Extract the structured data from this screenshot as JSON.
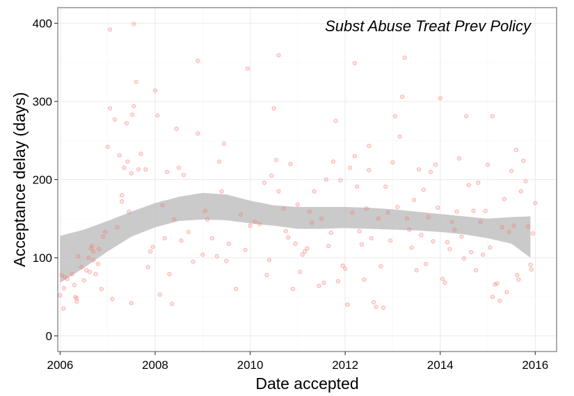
{
  "chart_data": {
    "type": "scatter",
    "title": "Subst Abuse Treat Prev Policy",
    "xlabel": "Date accepted",
    "ylabel": "Acceptance delay (days)",
    "xlim": [
      2005.95,
      2016.45
    ],
    "ylim": [
      -20,
      420
    ],
    "x_ticks": [
      2006,
      2008,
      2010,
      2012,
      2014,
      2016
    ],
    "x_tick_labels": [
      "2006",
      "2008",
      "2010",
      "2012",
      "2014",
      "2016"
    ],
    "y_ticks": [
      0,
      100,
      200,
      300,
      400
    ],
    "y_tick_labels": [
      "0",
      "100",
      "200",
      "300",
      "400"
    ],
    "grid": true,
    "legend": "none",
    "colors": {
      "point": "#f8766d",
      "ribbon": "#bdbdbd",
      "panel_border": "#7f7f7f",
      "grid": "#ebebeb"
    },
    "smooth_band": {
      "x": [
        2006.0,
        2006.5,
        2007.0,
        2007.5,
        2008.0,
        2008.5,
        2009.0,
        2009.5,
        2010.0,
        2010.5,
        2011.0,
        2011.5,
        2012.0,
        2012.5,
        2013.0,
        2013.5,
        2014.0,
        2014.5,
        2015.0,
        2015.5,
        2015.9
      ],
      "upper": [
        128,
        136,
        147,
        159,
        170,
        178,
        183,
        181,
        173,
        167,
        165,
        165,
        165,
        164,
        162,
        159,
        156,
        153,
        150,
        152,
        153
      ],
      "lower": [
        68,
        87,
        108,
        127,
        139,
        147,
        149,
        148,
        144,
        141,
        137,
        137,
        138,
        137,
        136,
        135,
        133,
        130,
        125,
        118,
        100
      ]
    },
    "series": [
      {
        "points": [
          [
            2006.0,
            52
          ],
          [
            2006.03,
            78
          ],
          [
            2006.07,
            35
          ],
          [
            2006.08,
            61
          ],
          [
            2006.1,
            75
          ],
          [
            2006.15,
            73
          ],
          [
            2006.25,
            79
          ],
          [
            2006.3,
            65
          ],
          [
            2006.32,
            50
          ],
          [
            2006.35,
            44
          ],
          [
            2006.35,
            48
          ],
          [
            2006.38,
            102
          ],
          [
            2006.45,
            88
          ],
          [
            2006.5,
            71
          ],
          [
            2006.55,
            84
          ],
          [
            2006.6,
            100
          ],
          [
            2006.62,
            82
          ],
          [
            2006.65,
            112
          ],
          [
            2006.67,
            115
          ],
          [
            2006.7,
            108
          ],
          [
            2006.75,
            79
          ],
          [
            2006.7,
            97
          ],
          [
            2006.8,
            92
          ],
          [
            2006.82,
            111
          ],
          [
            2006.9,
            127
          ],
          [
            2006.95,
            133
          ],
          [
            2006.87,
            60
          ],
          [
            2007.0,
            242
          ],
          [
            2007.05,
            392
          ],
          [
            2007.05,
            291
          ],
          [
            2007.1,
            47
          ],
          [
            2007.15,
            277
          ],
          [
            2007.2,
            139
          ],
          [
            2007.25,
            231
          ],
          [
            2007.3,
            180
          ],
          [
            2007.3,
            172
          ],
          [
            2007.35,
            215
          ],
          [
            2007.4,
            272
          ],
          [
            2007.42,
            223
          ],
          [
            2007.45,
            159
          ],
          [
            2007.5,
            208
          ],
          [
            2007.52,
            283
          ],
          [
            2007.55,
            399
          ],
          [
            2007.55,
            294
          ],
          [
            2007.6,
            325
          ],
          [
            2007.65,
            213
          ],
          [
            2007.7,
            233
          ],
          [
            2007.5,
            42
          ],
          [
            2007.8,
            213
          ],
          [
            2007.85,
            88
          ],
          [
            2007.9,
            108
          ],
          [
            2007.95,
            114
          ],
          [
            2008.0,
            314
          ],
          [
            2008.05,
            282
          ],
          [
            2008.1,
            53
          ],
          [
            2008.15,
            167
          ],
          [
            2008.2,
            125
          ],
          [
            2008.25,
            210
          ],
          [
            2008.3,
            79
          ],
          [
            2008.35,
            41
          ],
          [
            2008.4,
            149
          ],
          [
            2008.45,
            265
          ],
          [
            2008.5,
            215
          ],
          [
            2008.55,
            122
          ],
          [
            2008.6,
            206
          ],
          [
            2008.7,
            133
          ],
          [
            2008.8,
            95
          ],
          [
            2008.9,
            352
          ],
          [
            2008.9,
            259
          ],
          [
            2009.0,
            104
          ],
          [
            2009.05,
            160
          ],
          [
            2009.1,
            149
          ],
          [
            2009.2,
            125
          ],
          [
            2009.3,
            102
          ],
          [
            2009.35,
            223
          ],
          [
            2009.4,
            185
          ],
          [
            2009.45,
            246
          ],
          [
            2009.5,
            96
          ],
          [
            2009.55,
            118
          ],
          [
            2009.7,
            60
          ],
          [
            2009.8,
            155
          ],
          [
            2009.9,
            110
          ],
          [
            2009.95,
            342
          ],
          [
            2010.0,
            141
          ],
          [
            2010.1,
            146
          ],
          [
            2010.2,
            143
          ],
          [
            2010.3,
            196
          ],
          [
            2010.35,
            78
          ],
          [
            2010.4,
            97
          ],
          [
            2010.45,
            205
          ],
          [
            2010.5,
            291
          ],
          [
            2010.55,
            225
          ],
          [
            2010.6,
            185
          ],
          [
            2010.6,
            359
          ],
          [
            2010.7,
            163
          ],
          [
            2010.75,
            134
          ],
          [
            2010.8,
            126
          ],
          [
            2010.85,
            220
          ],
          [
            2010.9,
            60
          ],
          [
            2010.95,
            118
          ],
          [
            2011.0,
            168
          ],
          [
            2011.05,
            82
          ],
          [
            2011.1,
            104
          ],
          [
            2011.15,
            108
          ],
          [
            2011.2,
            112
          ],
          [
            2011.25,
            159
          ],
          [
            2011.3,
            145
          ],
          [
            2011.35,
            185
          ],
          [
            2011.45,
            64
          ],
          [
            2011.5,
            150
          ],
          [
            2011.55,
            68
          ],
          [
            2011.6,
            200
          ],
          [
            2011.65,
            115
          ],
          [
            2011.7,
            132
          ],
          [
            2011.75,
            223
          ],
          [
            2011.8,
            275
          ],
          [
            2011.85,
            70
          ],
          [
            2011.9,
            199
          ],
          [
            2011.95,
            90
          ],
          [
            2012.0,
            86
          ],
          [
            2012.05,
            40
          ],
          [
            2012.1,
            215
          ],
          [
            2012.15,
            158
          ],
          [
            2012.2,
            349
          ],
          [
            2012.2,
            230
          ],
          [
            2012.25,
            191
          ],
          [
            2012.3,
            134
          ],
          [
            2012.35,
            117
          ],
          [
            2012.4,
            72
          ],
          [
            2012.45,
            163
          ],
          [
            2012.5,
            212
          ],
          [
            2012.5,
            243
          ],
          [
            2012.55,
            125
          ],
          [
            2012.6,
            43
          ],
          [
            2012.65,
            37
          ],
          [
            2012.7,
            150
          ],
          [
            2012.75,
            89
          ],
          [
            2012.8,
            36
          ],
          [
            2012.85,
            191
          ],
          [
            2012.9,
            158
          ],
          [
            2012.95,
            122
          ],
          [
            2013.0,
            222
          ],
          [
            2013.05,
            281
          ],
          [
            2013.1,
            165
          ],
          [
            2013.15,
            255
          ],
          [
            2013.2,
            306
          ],
          [
            2013.25,
            356
          ],
          [
            2013.3,
            150
          ],
          [
            2013.35,
            136
          ],
          [
            2013.4,
            113
          ],
          [
            2013.45,
            174
          ],
          [
            2013.5,
            84
          ],
          [
            2013.55,
            213
          ],
          [
            2013.6,
            129
          ],
          [
            2013.65,
            187
          ],
          [
            2013.7,
            92
          ],
          [
            2013.75,
            152
          ],
          [
            2013.8,
            210
          ],
          [
            2013.85,
            121
          ],
          [
            2013.9,
            219
          ],
          [
            2013.95,
            164
          ],
          [
            2014.0,
            304
          ],
          [
            2014.05,
            73
          ],
          [
            2014.1,
            68
          ],
          [
            2014.15,
            120
          ],
          [
            2014.2,
            111
          ],
          [
            2014.25,
            146
          ],
          [
            2014.3,
            136
          ],
          [
            2014.35,
            159
          ],
          [
            2014.4,
            227
          ],
          [
            2014.45,
            127
          ],
          [
            2014.5,
            99
          ],
          [
            2014.55,
            281
          ],
          [
            2014.6,
            193
          ],
          [
            2014.65,
            107
          ],
          [
            2014.7,
            160
          ],
          [
            2014.75,
            84
          ],
          [
            2014.8,
            196
          ],
          [
            2014.85,
            146
          ],
          [
            2014.9,
            104
          ],
          [
            2014.95,
            160
          ],
          [
            2015.0,
            219
          ],
          [
            2015.05,
            113
          ],
          [
            2015.1,
            281
          ],
          [
            2015.1,
            50
          ],
          [
            2015.15,
            66
          ],
          [
            2015.2,
            67
          ],
          [
            2015.25,
            45
          ],
          [
            2015.3,
            139
          ],
          [
            2015.35,
            175
          ],
          [
            2015.4,
            56
          ],
          [
            2015.45,
            133
          ],
          [
            2015.5,
            211
          ],
          [
            2015.55,
            141
          ],
          [
            2015.6,
            238
          ],
          [
            2015.62,
            78
          ],
          [
            2015.65,
            72
          ],
          [
            2015.7,
            185
          ],
          [
            2015.75,
            224
          ],
          [
            2015.8,
            198
          ],
          [
            2015.85,
            140
          ],
          [
            2015.9,
            91
          ],
          [
            2015.92,
            85
          ],
          [
            2015.95,
            131
          ],
          [
            2016.0,
            170
          ]
        ]
      }
    ]
  }
}
